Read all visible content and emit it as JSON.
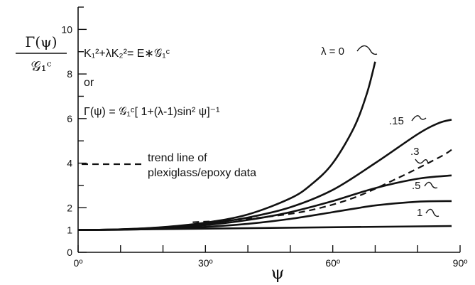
{
  "chart_data": {
    "type": "line",
    "xlabel": "ψ",
    "ylabel_top": "Γ(ψ)",
    "ylabel_bottom": "𝒢₁ᶜ",
    "xlim": [
      0,
      90
    ],
    "ylim": [
      0,
      11
    ],
    "x_ticks": [
      {
        "value": 0,
        "label": "0º"
      },
      {
        "value": 30,
        "label": "30º"
      },
      {
        "value": 60,
        "label": "60º"
      },
      {
        "value": 90,
        "label": "90º"
      }
    ],
    "x_minor_step": 10,
    "y_ticks": [
      {
        "value": 0,
        "label": "0"
      },
      {
        "value": 1,
        "label": "1"
      },
      {
        "value": 2,
        "label": "2"
      },
      {
        "value": 4,
        "label": "4"
      },
      {
        "value": 6,
        "label": "6"
      },
      {
        "value": 8,
        "label": "8"
      },
      {
        "value": 10,
        "label": "10"
      }
    ],
    "annotations": {
      "eq1": "K₁²+λK₂²= E∗𝒢₁ᶜ",
      "or": "or",
      "eq2": "Γ(ψ) = 𝒢₁ᶜ[ 1+(λ-1)sin² ψ]⁻¹",
      "legend_line1": "trend line of",
      "legend_line2": "plexiglass/epoxy data"
    },
    "series": [
      {
        "name": "λ = 0",
        "style": "solid",
        "x": [
          0,
          10,
          20,
          30,
          40,
          50,
          55,
          60,
          65,
          68,
          70
        ],
        "y": [
          1.0,
          1.03,
          1.13,
          1.33,
          1.7,
          2.42,
          3.05,
          4.0,
          5.6,
          7.1,
          8.55
        ]
      },
      {
        "name": ".15",
        "style": "solid",
        "x": [
          0,
          10,
          20,
          30,
          40,
          50,
          60,
          70,
          80,
          85,
          88
        ],
        "y": [
          1.0,
          1.03,
          1.12,
          1.28,
          1.56,
          2.02,
          2.8,
          4.0,
          5.3,
          5.8,
          5.95
        ]
      },
      {
        "name": ".3",
        "style": "solid",
        "x": [
          0,
          10,
          20,
          30,
          40,
          50,
          60,
          70,
          80,
          88
        ],
        "y": [
          1.0,
          1.02,
          1.09,
          1.22,
          1.45,
          1.8,
          2.3,
          2.88,
          3.3,
          3.45
        ]
      },
      {
        "name": ".5",
        "style": "solid",
        "x": [
          0,
          10,
          20,
          30,
          40,
          50,
          60,
          70,
          80,
          88
        ],
        "y": [
          1.0,
          1.01,
          1.06,
          1.14,
          1.28,
          1.5,
          1.8,
          2.1,
          2.27,
          2.3
        ]
      },
      {
        "name": "1",
        "style": "solid",
        "x": [
          0,
          88
        ],
        "y": [
          1.0,
          1.18
        ]
      },
      {
        "name": "trend line of plexiglass/epoxy data",
        "style": "dashed",
        "x": [
          27,
          35,
          45,
          55,
          65,
          75,
          85,
          88
        ],
        "y": [
          1.35,
          1.43,
          1.6,
          1.9,
          2.45,
          3.3,
          4.25,
          4.6
        ]
      }
    ]
  }
}
